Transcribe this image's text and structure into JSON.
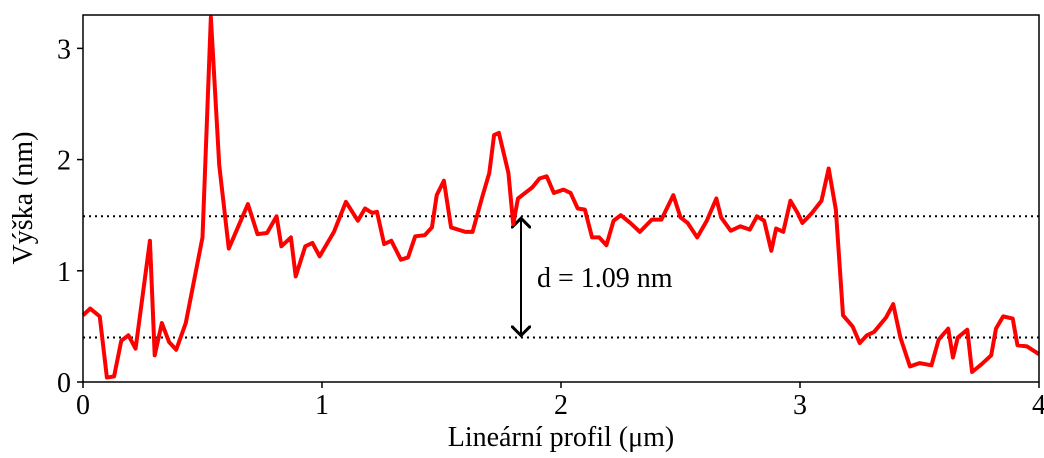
{
  "chart_data": {
    "type": "line",
    "xlabel": "Lineární profil (μm)",
    "ylabel": "Výška (nm)",
    "annotation": "d = 1.09 nm",
    "hlines": [
      1.49,
      0.4
    ],
    "xlim": [
      0,
      4
    ],
    "ylim": [
      0,
      3.3
    ],
    "xticks": [
      0,
      1,
      2,
      3,
      4
    ],
    "yticks": [
      0,
      1,
      2,
      3
    ],
    "grid": false,
    "x": [
      0,
      0.03,
      0.07,
      0.1,
      0.13,
      0.16,
      0.19,
      0.22,
      0.28,
      0.3,
      0.33,
      0.36,
      0.39,
      0.43,
      0.5,
      0.535,
      0.57,
      0.61,
      0.65,
      0.69,
      0.73,
      0.77,
      0.81,
      0.83,
      0.87,
      0.89,
      0.93,
      0.96,
      0.99,
      1.05,
      1.1,
      1.15,
      1.18,
      1.21,
      1.23,
      1.26,
      1.29,
      1.33,
      1.36,
      1.39,
      1.43,
      1.46,
      1.48,
      1.51,
      1.54,
      1.6,
      1.63,
      1.67,
      1.7,
      1.72,
      1.74,
      1.78,
      1.8,
      1.82,
      1.85,
      1.88,
      1.91,
      1.94,
      1.97,
      2.01,
      2.04,
      2.07,
      2.1,
      2.13,
      2.16,
      2.19,
      2.22,
      2.25,
      2.29,
      2.33,
      2.38,
      2.42,
      2.47,
      2.5,
      2.53,
      2.57,
      2.61,
      2.65,
      2.67,
      2.71,
      2.75,
      2.79,
      2.82,
      2.85,
      2.88,
      2.9,
      2.93,
      2.96,
      2.99,
      3.01,
      3.05,
      3.09,
      3.12,
      3.15,
      3.18,
      3.22,
      3.25,
      3.28,
      3.31,
      3.36,
      3.39,
      3.42,
      3.46,
      3.5,
      3.55,
      3.58,
      3.62,
      3.64,
      3.66,
      3.7,
      3.72,
      3.76,
      3.8,
      3.82,
      3.85,
      3.89,
      3.91,
      3.95,
      4.0
    ],
    "series": [
      {
        "color": "#ff0000",
        "values": [
          0.6,
          0.66,
          0.59,
          0.04,
          0.05,
          0.37,
          0.42,
          0.3,
          1.27,
          0.24,
          0.53,
          0.36,
          0.29,
          0.53,
          1.3,
          3.28,
          1.95,
          1.2,
          1.4,
          1.6,
          1.33,
          1.34,
          1.49,
          1.22,
          1.3,
          0.95,
          1.22,
          1.25,
          1.13,
          1.35,
          1.62,
          1.45,
          1.56,
          1.52,
          1.53,
          1.24,
          1.27,
          1.1,
          1.12,
          1.31,
          1.32,
          1.39,
          1.68,
          1.81,
          1.39,
          1.35,
          1.35,
          1.66,
          1.88,
          2.22,
          2.24,
          1.88,
          1.42,
          1.65,
          1.7,
          1.75,
          1.83,
          1.85,
          1.7,
          1.73,
          1.7,
          1.56,
          1.55,
          1.3,
          1.3,
          1.23,
          1.45,
          1.5,
          1.43,
          1.35,
          1.46,
          1.46,
          1.68,
          1.48,
          1.43,
          1.3,
          1.45,
          1.65,
          1.48,
          1.36,
          1.4,
          1.37,
          1.49,
          1.45,
          1.18,
          1.38,
          1.35,
          1.63,
          1.52,
          1.43,
          1.52,
          1.63,
          1.92,
          1.55,
          0.6,
          0.5,
          0.35,
          0.42,
          0.45,
          0.58,
          0.7,
          0.4,
          0.14,
          0.17,
          0.15,
          0.38,
          0.48,
          0.22,
          0.4,
          0.47,
          0.09,
          0.16,
          0.24,
          0.48,
          0.59,
          0.57,
          0.33,
          0.32,
          0.25
        ]
      }
    ]
  }
}
